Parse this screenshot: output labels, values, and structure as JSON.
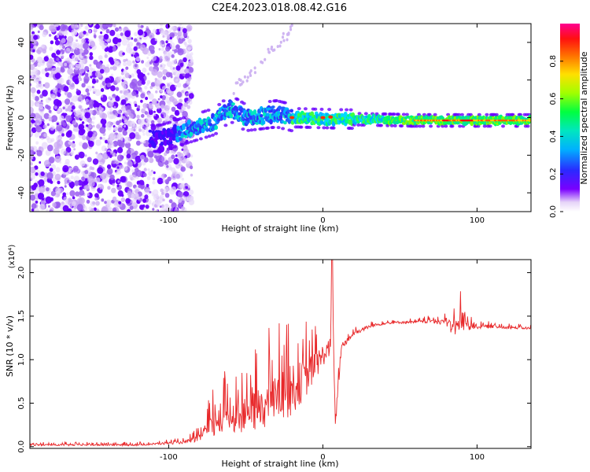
{
  "title": "C2E4.2023.018.08.42.G16",
  "chart_data": [
    {
      "type": "heatmap",
      "xlabel": "Height of straight line (km)",
      "ylabel": "Frequency (Hz)",
      "xlim": [
        -190,
        135
      ],
      "ylim": [
        -50,
        50
      ],
      "x_ticks": [
        -100,
        0,
        100
      ],
      "y_ticks": [
        -40,
        -20,
        0,
        20,
        40
      ],
      "colorbar": {
        "label": "Normalized spectral amplitude",
        "range": [
          0.0,
          1.0
        ],
        "ticks": [
          0.0,
          0.2,
          0.4,
          0.6,
          0.8
        ],
        "colors": [
          "#ffffff",
          "#d8c2f2",
          "#6a00ff",
          "#2020ff",
          "#00c8ff",
          "#00ff80",
          "#80ff00",
          "#ffff00",
          "#ff8000",
          "#ff0000",
          "#ff0080"
        ]
      },
      "ridge": {
        "description_points_x": [
          -105,
          -90,
          -70,
          -60,
          -50,
          -40,
          -30,
          -20,
          0,
          20,
          60,
          100,
          135
        ],
        "description_points_y": [
          -11,
          -7,
          -2,
          5,
          0,
          1,
          2,
          0,
          -0.5,
          -0.8,
          -1.5,
          -1.5,
          -1.5
        ]
      }
    },
    {
      "type": "line",
      "xlabel": "Height of straight line (km)",
      "ylabel": "SNR (10 * v/v)",
      "y_multiplier": "(x10⁴)",
      "xlim": [
        -190,
        135
      ],
      "ylim": [
        -0.02,
        2.15
      ],
      "x_ticks": [
        -100,
        0,
        100
      ],
      "y_ticks": [
        0.0,
        0.5,
        1.0,
        1.5,
        2.0
      ],
      "series": [
        {
          "color": "#e8282a",
          "envelope_x": [
            -190,
            -120,
            -90,
            -80,
            -70,
            -60,
            -50,
            -40,
            -30,
            -20,
            -10,
            0,
            5,
            6,
            8,
            10,
            12,
            20,
            30,
            40,
            50,
            60,
            70,
            80,
            85,
            90,
            95,
            100,
            110,
            120,
            135
          ],
          "envelope_y": [
            0.02,
            0.02,
            0.05,
            0.1,
            0.25,
            0.35,
            0.35,
            0.45,
            0.55,
            0.65,
            0.8,
            1.05,
            1.15,
            2.1,
            0.2,
            0.7,
            1.15,
            1.3,
            1.38,
            1.42,
            1.43,
            1.43,
            1.44,
            1.43,
            1.35,
            1.45,
            1.4,
            1.38,
            1.38,
            1.37,
            1.36
          ],
          "spread_y": [
            0.02,
            0.02,
            0.03,
            0.08,
            0.3,
            0.35,
            0.4,
            0.5,
            0.55,
            0.6,
            0.4,
            0.25,
            0.2,
            0.0,
            0.1,
            0.2,
            0.1,
            0.05,
            0.04,
            0.03,
            0.03,
            0.03,
            0.04,
            0.1,
            0.2,
            0.25,
            0.15,
            0.05,
            0.04,
            0.03,
            0.03
          ]
        }
      ]
    }
  ]
}
